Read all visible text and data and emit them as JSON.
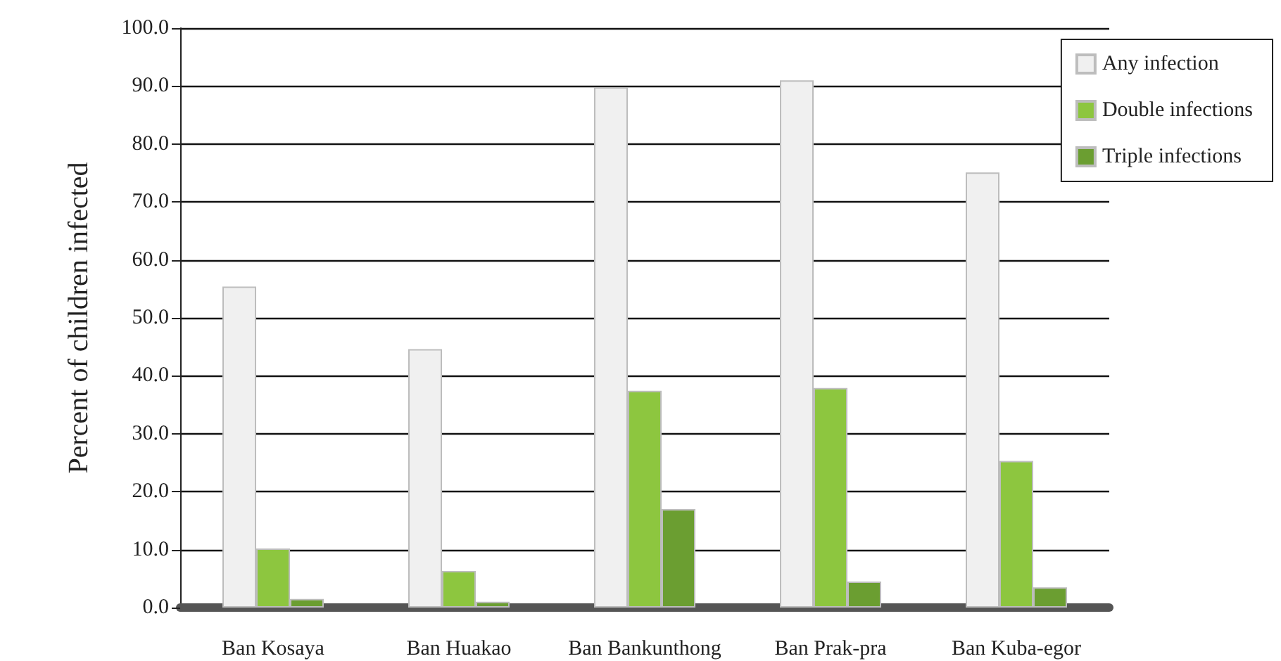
{
  "chart_data": {
    "type": "bar",
    "ylabel": "Percent of children infected",
    "categories": [
      "Ban Kosaya",
      "Ban Huakao",
      "Ban Bankunthong",
      "Ban Prak-pra",
      "Ban Kuba-egor"
    ],
    "series": [
      {
        "name": "Any infection",
        "color": "#f0f0f0",
        "values": [
          55.4,
          44.6,
          89.8,
          91.0,
          75.1
        ]
      },
      {
        "name": "Double infections",
        "color": "#8dc63f",
        "values": [
          10.2,
          6.3,
          37.4,
          37.9,
          25.3
        ]
      },
      {
        "name": "Triple infections",
        "color": "#6b9e31",
        "values": [
          1.5,
          1.0,
          17.0,
          4.5,
          3.5
        ]
      }
    ],
    "ylim": [
      0,
      100
    ],
    "yticks": [
      {
        "value": 0,
        "label": "0.0"
      },
      {
        "value": 10,
        "label": "10.0"
      },
      {
        "value": 20,
        "label": "20.0"
      },
      {
        "value": 30,
        "label": "30.0"
      },
      {
        "value": 40,
        "label": "40.0"
      },
      {
        "value": 50,
        "label": "50.0"
      },
      {
        "value": 60,
        "label": "60.0"
      },
      {
        "value": 70,
        "label": "70.0"
      },
      {
        "value": 80,
        "label": "80.0"
      },
      {
        "value": 90,
        "label": "90.0"
      },
      {
        "value": 100,
        "label": "100.0"
      }
    ],
    "grid": "y",
    "legend": "top right"
  }
}
